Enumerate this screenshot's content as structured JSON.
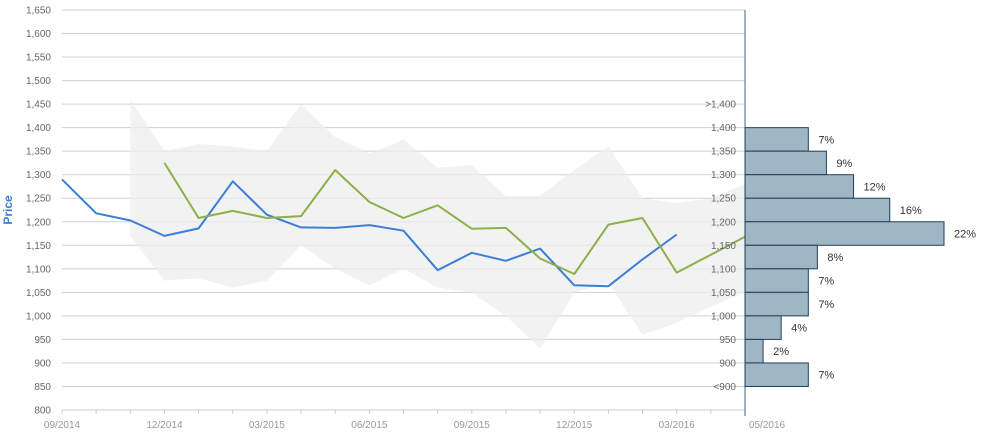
{
  "chart_data": {
    "type": "line",
    "ylabel": "Price",
    "ylim": [
      800,
      1650
    ],
    "yticks": [
      "800",
      "850",
      "900",
      "950",
      "1,000",
      "1,050",
      "1,100",
      "1,150",
      "1,200",
      "1,250",
      "1,300",
      "1,350",
      "1,400",
      "1,450",
      "1,500",
      "1,550",
      "1,600",
      "1,650"
    ],
    "x_labels": [
      "09/2014",
      "12/2014",
      "03/2015",
      "06/2015",
      "09/2015",
      "12/2015",
      "03/2016",
      "05/2016"
    ],
    "grid": true,
    "colors": {
      "blue": "#3a7fd5",
      "green": "#8cb04a",
      "band": "#eeeeee",
      "hist": "#9fb6c4",
      "hist_stroke": "#1f3f57"
    },
    "band": {
      "x": [
        "11/2014",
        "12/2014",
        "01/2015",
        "02/2015",
        "03/2015",
        "04/2015",
        "05/2015",
        "06/2015",
        "07/2015",
        "08/2015",
        "09/2015",
        "10/2015",
        "11/2015",
        "12/2015",
        "01/2016",
        "02/2016",
        "03/2016",
        "04/2016",
        "05/2016"
      ],
      "upper": [
        1460,
        1350,
        1365,
        1360,
        1350,
        1450,
        1380,
        1345,
        1375,
        1315,
        1320,
        1255,
        1255,
        1310,
        1360,
        1250,
        1240,
        1250,
        1280
      ],
      "lower": [
        1170,
        1075,
        1080,
        1060,
        1075,
        1150,
        1100,
        1065,
        1100,
        1060,
        1050,
        1000,
        930,
        1050,
        1070,
        960,
        985,
        1020,
        1050
      ]
    },
    "series": [
      {
        "x": [
          "09/2014",
          "10/2014",
          "11/2014",
          "12/2014",
          "01/2015",
          "02/2015",
          "03/2015",
          "04/2015",
          "05/2015",
          "06/2015",
          "07/2015",
          "08/2015",
          "09/2015",
          "10/2015",
          "11/2015",
          "12/2015",
          "01/2016",
          "02/2016",
          "03/2016"
        ],
        "values": [
          1290,
          1218,
          1203,
          1170,
          1186,
          1286,
          1215,
          1188,
          1187,
          1193,
          1181,
          1097,
          1134,
          1117,
          1143,
          1065,
          1063,
          1120,
          1173
        ]
      },
      {
        "x": [
          "12/2014",
          "01/2015",
          "02/2015",
          "03/2015",
          "04/2015",
          "05/2015",
          "06/2015",
          "07/2015",
          "08/2015",
          "09/2015",
          "10/2015",
          "11/2015",
          "12/2015",
          "01/2016",
          "02/2016",
          "03/2016",
          "04/2016",
          "05/2016"
        ],
        "values": [
          1325,
          1208,
          1223,
          1208,
          1212,
          1310,
          1242,
          1208,
          1235,
          1185,
          1187,
          1122,
          1089,
          1194,
          1208,
          1092,
          1130,
          1168
        ]
      }
    ],
    "histogram": {
      "bin_labels": [
        ">1,400",
        "1,400",
        "1,350",
        "1,300",
        "1,250",
        "1,200",
        "1,150",
        "1,100",
        "1,050",
        "1,000",
        "950",
        "900",
        "<900"
      ],
      "bins": [
        {
          "low": 1350,
          "high": 1400,
          "pct": 7,
          "label": "7%"
        },
        {
          "low": 1300,
          "high": 1350,
          "pct": 9,
          "label": "9%"
        },
        {
          "low": 1250,
          "high": 1300,
          "pct": 12,
          "label": "12%"
        },
        {
          "low": 1200,
          "high": 1250,
          "pct": 16,
          "label": "16%"
        },
        {
          "low": 1150,
          "high": 1200,
          "pct": 22,
          "label": "22%"
        },
        {
          "low": 1100,
          "high": 1150,
          "pct": 8,
          "label": "8%"
        },
        {
          "low": 1050,
          "high": 1100,
          "pct": 7,
          "label": "7%"
        },
        {
          "low": 1000,
          "high": 1050,
          "pct": 7,
          "label": "7%"
        },
        {
          "low": 950,
          "high": 1000,
          "pct": 4,
          "label": "4%"
        },
        {
          "low": 900,
          "high": 950,
          "pct": 2,
          "label": "2%"
        },
        {
          "low": 850,
          "high": 900,
          "pct": 7,
          "label": "7%"
        }
      ]
    }
  }
}
